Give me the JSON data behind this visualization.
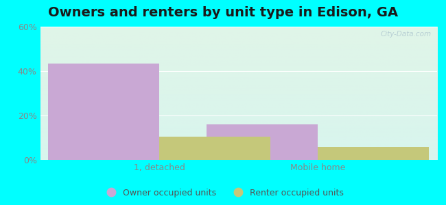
{
  "title": "Owners and renters by unit type in Edison, GA",
  "categories": [
    "1, detached",
    "Mobile home"
  ],
  "owner_values": [
    43.5,
    16.0
  ],
  "renter_values": [
    10.5,
    6.0
  ],
  "owner_color": "#c9a8d4",
  "renter_color": "#c5c87a",
  "ylim": [
    0,
    60
  ],
  "yticks": [
    0,
    20,
    40,
    60
  ],
  "ytick_labels": [
    "0%",
    "20%",
    "40%",
    "60%"
  ],
  "outer_color": "#00ffff",
  "title_fontsize": 14,
  "tick_fontsize": 9,
  "legend_labels": [
    "Owner occupied units",
    "Renter occupied units"
  ],
  "watermark": "City-Data.com",
  "bar_width": 0.28,
  "group_positions": [
    0.3,
    0.7
  ],
  "bg_colors_top": "#e0f5e8",
  "bg_colors_bottom": "#c8f0ea"
}
